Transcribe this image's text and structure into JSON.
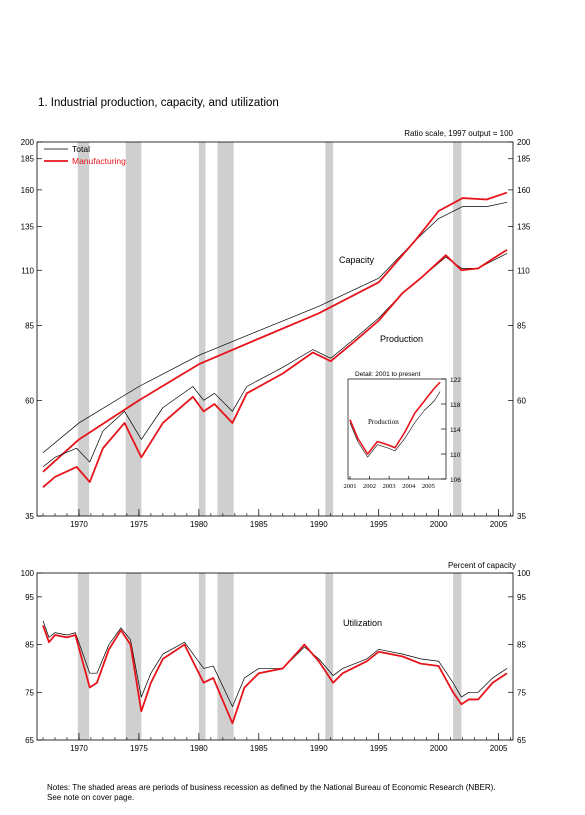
{
  "title": "1.  Industrial production, capacity, and utilization",
  "notes": [
    "Notes: The shaded areas are periods of business recession as defined by the National Bureau of Economic Research (NBER).",
    "See note on cover page."
  ],
  "colors": {
    "total": "#000000",
    "manufacturing": "#e8141c",
    "recession": "#cfcfcf"
  },
  "recessions": [
    [
      1969.9,
      1970.85
    ],
    [
      1973.9,
      1975.2
    ],
    [
      1980.0,
      1980.55
    ],
    [
      1981.55,
      1982.9
    ],
    [
      1990.55,
      1991.2
    ],
    [
      2001.2,
      2001.9
    ]
  ],
  "chart_data": [
    {
      "type": "line",
      "name": "top-panel",
      "ylabel": "Ratio scale, 1997 output = 100",
      "yscale": "log",
      "xlim": [
        1966.5,
        2006.2
      ],
      "ylim": [
        35,
        200
      ],
      "xticks": [
        1970,
        1975,
        1980,
        1985,
        1990,
        1995,
        2000,
        2005
      ],
      "yticks": [
        35,
        60,
        85,
        110,
        135,
        160,
        185,
        200
      ],
      "legend": {
        "position": "top-left",
        "entries": [
          "Total",
          "Manufacturing"
        ]
      },
      "annotations": [
        "Capacity",
        "Production"
      ],
      "series": [
        {
          "name": "Total",
          "group": "Capacity",
          "x": [
            1967,
            1970,
            1975,
            1980,
            1985,
            1990,
            1995,
            1998,
            2000,
            2002,
            2004,
            2005.7
          ],
          "y": [
            47,
            54,
            64,
            74,
            83,
            93,
            106,
            126,
            140,
            148,
            148,
            151
          ]
        },
        {
          "name": "Manufacturing",
          "group": "Capacity",
          "x": [
            1967,
            1970,
            1975,
            1980,
            1985,
            1990,
            1995,
            1998,
            2000,
            2002,
            2004,
            2005.7
          ],
          "y": [
            43,
            50,
            60,
            71,
            80,
            90,
            104,
            126,
            145,
            154,
            153,
            158
          ]
        },
        {
          "name": "Total",
          "group": "Production",
          "x": [
            1967,
            1968,
            1969.8,
            1970.9,
            1972,
            1973.8,
            1975.2,
            1977,
            1979.5,
            1980.4,
            1981.3,
            1982.8,
            1984,
            1987,
            1989.5,
            1991,
            1993,
            1995,
            1997,
            1998.5,
            2000.6,
            2001.9,
            2003.3,
            2004.5,
            2005.7
          ],
          "y": [
            44,
            46,
            48,
            45,
            52,
            57,
            50,
            58,
            64,
            60,
            62,
            57,
            64,
            70,
            76,
            73,
            80,
            88,
            99,
            106,
            117,
            111,
            111,
            115,
            119
          ]
        },
        {
          "name": "Manufacturing",
          "group": "Production",
          "x": [
            1967,
            1968,
            1969.8,
            1970.9,
            1972,
            1973.8,
            1975.2,
            1977,
            1979.5,
            1980.4,
            1981.3,
            1982.8,
            1984,
            1987,
            1989.5,
            1991,
            1993,
            1995,
            1997,
            1998.5,
            2000.6,
            2001.9,
            2003.3,
            2004.5,
            2005.7
          ],
          "y": [
            40,
            42,
            44,
            41,
            48,
            54,
            46,
            54,
            61,
            57,
            59,
            54,
            62,
            68,
            75,
            72,
            79,
            87,
            99,
            106,
            118,
            110,
            111,
            116,
            121
          ]
        }
      ]
    },
    {
      "type": "line",
      "name": "inset",
      "title": "Detail: 2001 to present",
      "annotation": "Production",
      "xlim": [
        2000.9,
        2005.9
      ],
      "ylim": [
        106,
        122
      ],
      "xticks": [
        2001,
        2002,
        2003,
        2004,
        2005
      ],
      "yticks": [
        106,
        110,
        114,
        118,
        122
      ],
      "series": [
        {
          "name": "Total",
          "x": [
            2001,
            2001.4,
            2001.9,
            2002.4,
            2002.9,
            2003.3,
            2003.8,
            2004.3,
            2004.8,
            2005.3,
            2005.6
          ],
          "y": [
            115,
            112,
            109.5,
            111.5,
            111,
            110.5,
            112.5,
            115,
            117,
            118.5,
            120
          ]
        },
        {
          "name": "Manufacturing",
          "x": [
            2001,
            2001.4,
            2001.9,
            2002.4,
            2002.9,
            2003.3,
            2003.8,
            2004.3,
            2004.8,
            2005.3,
            2005.6
          ],
          "y": [
            115.5,
            112.5,
            110,
            112,
            111.5,
            111,
            113.5,
            116.5,
            118.5,
            120.5,
            121.5
          ]
        }
      ]
    },
    {
      "type": "line",
      "name": "utilization-panel",
      "ylabel": "Percent of capacity",
      "annotation": "Utilization",
      "xlim": [
        1966.5,
        2006.2
      ],
      "ylim": [
        65,
        100
      ],
      "xticks": [
        1970,
        1975,
        1980,
        1985,
        1990,
        1995,
        2000,
        2005
      ],
      "yticks": [
        65,
        75,
        85,
        95,
        100
      ],
      "series": [
        {
          "name": "Total",
          "x": [
            1967,
            1967.5,
            1968,
            1969,
            1969.7,
            1970.9,
            1971.5,
            1972.5,
            1973.5,
            1974.3,
            1975.2,
            1976,
            1977,
            1978.8,
            1980.4,
            1981.2,
            1982.8,
            1983.8,
            1985,
            1987,
            1988.8,
            1990,
            1991.2,
            1992,
            1994,
            1995,
            1997,
            1998.5,
            2000,
            2001.2,
            2001.9,
            2002.5,
            2003.3,
            2004.5,
            2005.7
          ],
          "y": [
            90,
            86.5,
            87.5,
            87,
            87.5,
            79,
            79,
            85,
            88.5,
            86,
            74,
            79,
            83,
            85.5,
            80,
            80.5,
            72,
            78,
            80,
            80,
            84.5,
            82,
            78.5,
            80,
            82,
            84,
            83,
            82,
            81.5,
            77,
            74,
            75,
            75,
            78,
            80
          ]
        },
        {
          "name": "Manufacturing",
          "x": [
            1967,
            1967.5,
            1968,
            1969,
            1969.7,
            1970.9,
            1971.5,
            1972.5,
            1973.5,
            1974.3,
            1975.2,
            1976,
            1977,
            1978.8,
            1980.4,
            1981.2,
            1982.8,
            1983.8,
            1985,
            1987,
            1988.8,
            1990,
            1991.2,
            1992,
            1994,
            1995,
            1997,
            1998.5,
            2000,
            2001.2,
            2001.9,
            2002.5,
            2003.3,
            2004.5,
            2005.7
          ],
          "y": [
            89,
            85.5,
            87,
            86.5,
            87,
            76,
            77,
            84,
            88,
            85,
            71,
            77,
            82,
            85,
            77,
            78,
            68.5,
            76,
            79,
            80,
            85,
            81.5,
            77,
            79,
            81.5,
            83.5,
            82.5,
            81,
            80.5,
            75,
            72.5,
            73.5,
            73.5,
            77,
            79
          ]
        }
      ]
    }
  ]
}
